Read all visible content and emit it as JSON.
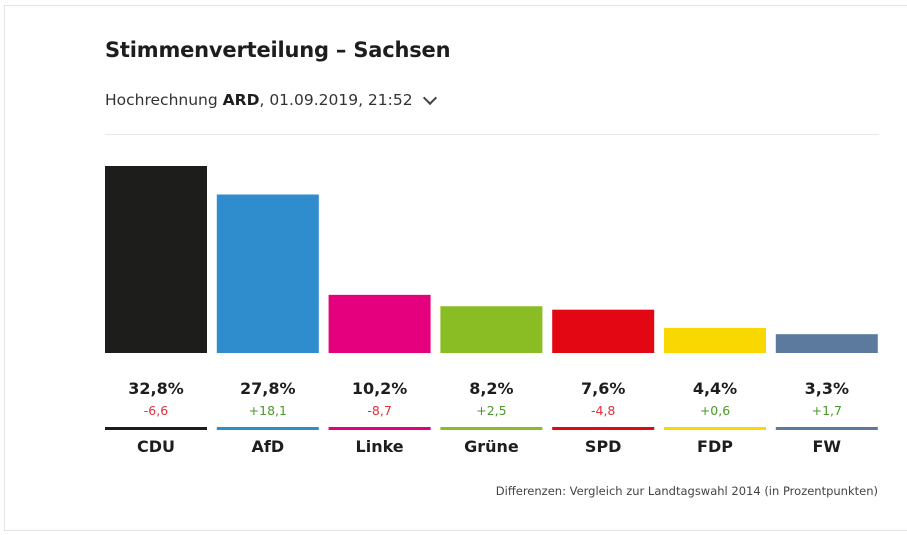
{
  "header": {
    "title": "Stimmenverteilung – Sachsen",
    "subtitle_prefix": "Hochrechnung ",
    "subtitle_source": "ARD",
    "subtitle_suffix": ", 01.09.2019, 21:52",
    "dropdown_icon": "chevron-down-icon"
  },
  "footnote": "Differenzen: Vergleich zur Landtagswahl 2014 (in Prozentpunkten)",
  "colors": {
    "positive": "#4a9a2a",
    "negative": "#e0313b"
  },
  "chart_data": {
    "type": "bar",
    "title": "Stimmenverteilung – Sachsen",
    "xlabel": "",
    "ylabel": "",
    "ylim": [
      0,
      33
    ],
    "grid": false,
    "categories": [
      "CDU",
      "AfD",
      "Linke",
      "Grüne",
      "SPD",
      "FDP",
      "FW"
    ],
    "values": [
      32.8,
      27.8,
      10.2,
      8.2,
      7.6,
      4.4,
      3.3
    ],
    "value_labels": [
      "32,8%",
      "27,8%",
      "10,2%",
      "8,2%",
      "7,6%",
      "4,4%",
      "3,3%"
    ],
    "differences": [
      -6.6,
      18.1,
      -8.7,
      2.5,
      -4.8,
      0.6,
      1.7
    ],
    "difference_labels": [
      "-6,6",
      "+18,1",
      "-8,7",
      "+2,5",
      "-4,8",
      "+0,6",
      "+1,7"
    ],
    "bar_colors": [
      "#1d1d1b",
      "#2f8ccd",
      "#e5007d",
      "#8abd24",
      "#e30613",
      "#f9d700",
      "#5b7a9e"
    ]
  }
}
